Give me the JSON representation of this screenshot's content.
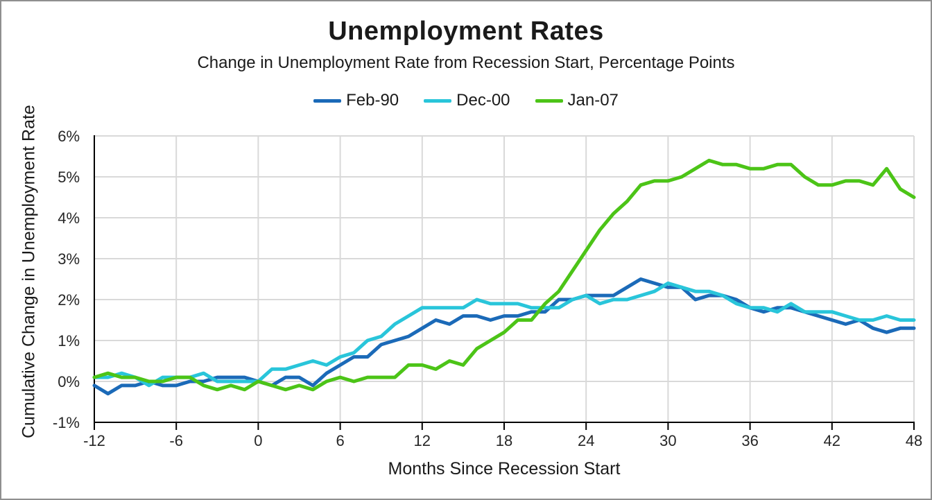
{
  "header": {
    "title": "Unemployment Rates",
    "subtitle": "Change in Unemployment Rate from Recession Start, Percentage Points"
  },
  "colors": {
    "axis": "#000000",
    "grid": "#d9d9d9",
    "text": "#262626",
    "series_feb90": "#1b6ab8",
    "series_dec00": "#29c5da",
    "series_jan07": "#4cc417"
  },
  "chart_data": {
    "type": "line",
    "title": "Unemployment Rates",
    "subtitle": "Change in Unemployment Rate from Recession Start, Percentage Points",
    "xlabel": "Months Since Recession Start",
    "ylabel": "Cumulative Change in Unemployment Rate",
    "xlim": [
      -12,
      48
    ],
    "ylim": [
      -1,
      6
    ],
    "x_ticks": [
      -12,
      -6,
      0,
      6,
      12,
      18,
      24,
      30,
      36,
      42,
      48
    ],
    "y_ticks": [
      -1,
      0,
      1,
      2,
      3,
      4,
      5,
      6
    ],
    "y_tick_suffix": "%",
    "grid": true,
    "legend_position": "top",
    "x": [
      -12,
      -11,
      -10,
      -9,
      -8,
      -7,
      -6,
      -5,
      -4,
      -3,
      -2,
      -1,
      0,
      1,
      2,
      3,
      4,
      5,
      6,
      7,
      8,
      9,
      10,
      11,
      12,
      13,
      14,
      15,
      16,
      17,
      18,
      19,
      20,
      21,
      22,
      23,
      24,
      25,
      26,
      27,
      28,
      29,
      30,
      31,
      32,
      33,
      34,
      35,
      36,
      37,
      38,
      39,
      40,
      41,
      42,
      43,
      44,
      45,
      46,
      47,
      48
    ],
    "series": [
      {
        "name": "Feb-90",
        "color": "#1b6ab8",
        "values": [
          -0.1,
          -0.3,
          -0.1,
          -0.1,
          0,
          -0.1,
          -0.1,
          0,
          0,
          0.1,
          0.1,
          0.1,
          0,
          -0.1,
          0.1,
          0.1,
          -0.1,
          0.2,
          0.4,
          0.6,
          0.6,
          0.9,
          1,
          1.1,
          1.3,
          1.5,
          1.4,
          1.6,
          1.6,
          1.5,
          1.6,
          1.6,
          1.7,
          1.7,
          2,
          2,
          2.1,
          2.1,
          2.1,
          2.3,
          2.5,
          2.4,
          2.3,
          2.3,
          2,
          2.1,
          2.1,
          2,
          1.8,
          1.7,
          1.8,
          1.8,
          1.7,
          1.6,
          1.5,
          1.4,
          1.5,
          1.3,
          1.2,
          1.3,
          1.3
        ]
      },
      {
        "name": "Dec-00",
        "color": "#29c5da",
        "values": [
          0.1,
          0.1,
          0.2,
          0.1,
          -0.1,
          0.1,
          0.1,
          0.1,
          0.2,
          0,
          0,
          0,
          0,
          0.3,
          0.3,
          0.4,
          0.5,
          0.4,
          0.6,
          0.7,
          1,
          1.1,
          1.4,
          1.6,
          1.8,
          1.8,
          1.8,
          1.8,
          2,
          1.9,
          1.9,
          1.9,
          1.8,
          1.8,
          1.8,
          2,
          2.1,
          1.9,
          2,
          2,
          2.1,
          2.2,
          2.4,
          2.3,
          2.2,
          2.2,
          2.1,
          1.9,
          1.8,
          1.8,
          1.7,
          1.9,
          1.7,
          1.7,
          1.7,
          1.6,
          1.5,
          1.5,
          1.6,
          1.5,
          1.5
        ]
      },
      {
        "name": "Jan-07",
        "color": "#4cc417",
        "values": [
          0.1,
          0.2,
          0.1,
          0.1,
          0,
          0,
          0.1,
          0.1,
          -0.1,
          -0.2,
          -0.1,
          -0.2,
          0,
          -0.1,
          -0.2,
          -0.1,
          -0.2,
          0,
          0.1,
          0,
          0.1,
          0.1,
          0.1,
          0.4,
          0.4,
          0.3,
          0.5,
          0.4,
          0.8,
          1,
          1.2,
          1.5,
          1.5,
          1.9,
          2.2,
          2.7,
          3.2,
          3.7,
          4.1,
          4.4,
          4.8,
          4.9,
          4.9,
          5,
          5.2,
          5.4,
          5.3,
          5.3,
          5.2,
          5.2,
          5.3,
          5.3,
          5,
          4.8,
          4.8,
          4.9,
          4.9,
          4.8,
          5.2,
          4.7,
          4.5
        ]
      }
    ]
  }
}
